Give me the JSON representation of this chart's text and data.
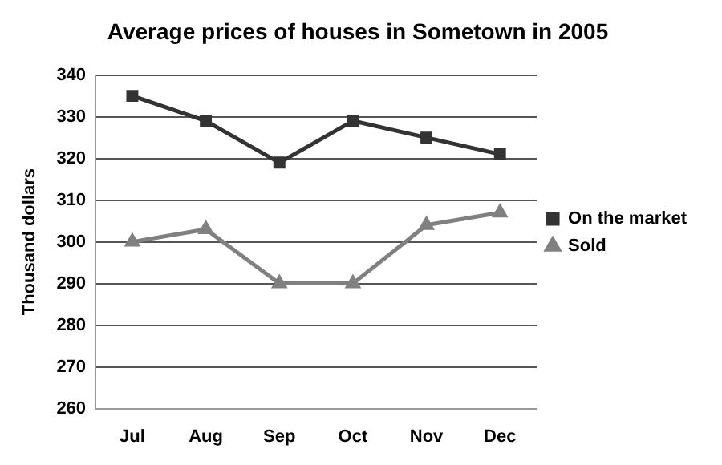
{
  "chart_data": {
    "type": "line",
    "title": "Average prices of houses in Sometown in 2005",
    "ylabel": "Thousand dollars",
    "categories": [
      "Jul",
      "Aug",
      "Sep",
      "Oct",
      "Nov",
      "Dec"
    ],
    "series": [
      {
        "name": "On the market",
        "color": "#333333",
        "marker": "square",
        "values": [
          335,
          329,
          319,
          329,
          325,
          321
        ]
      },
      {
        "name": "Sold",
        "color": "#808080",
        "marker": "triangle",
        "values": [
          300,
          303,
          290,
          290,
          304,
          307
        ]
      }
    ],
    "ylim": [
      260,
      340
    ],
    "yticks": [
      260,
      270,
      280,
      290,
      300,
      310,
      320,
      330,
      340
    ],
    "grid": "y",
    "legend": "right",
    "line_style": "solid"
  }
}
